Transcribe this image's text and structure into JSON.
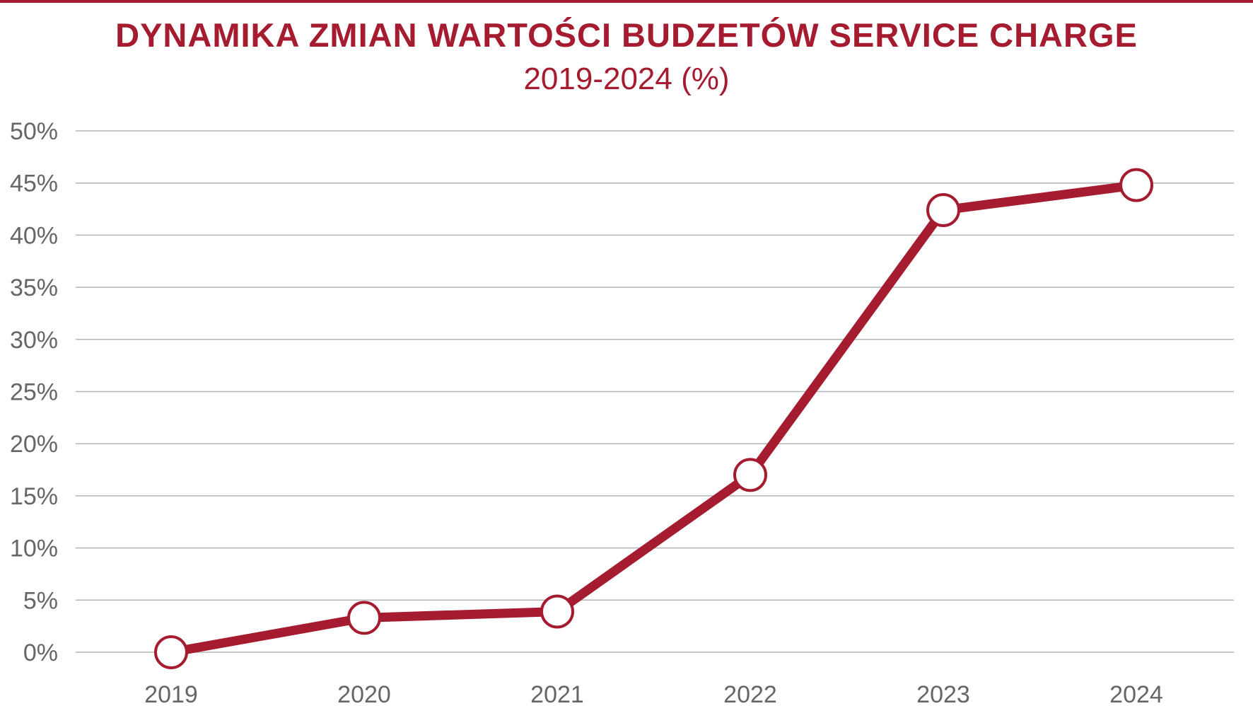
{
  "chart_data": {
    "type": "line",
    "title": "DYNAMIKA ZMIAN WARTOŚCI BUDZETÓW SERVICE CHARGE",
    "subtitle": "2019-2024 (%)",
    "categories": [
      "2019",
      "2020",
      "2021",
      "2022",
      "2023",
      "2024"
    ],
    "series": [
      {
        "values": [
          0,
          3.3,
          3.9,
          17.0,
          42.4,
          44.8
        ]
      }
    ],
    "ylim": [
      0,
      50
    ],
    "yticks": [
      0,
      5,
      10,
      15,
      20,
      25,
      30,
      35,
      40,
      45,
      50
    ],
    "ytick_labels": [
      "0%",
      "5%",
      "10%",
      "15%",
      "20%",
      "25%",
      "30%",
      "35%",
      "40%",
      "45%",
      "50%"
    ],
    "grid": true,
    "legend": "none",
    "colors": {
      "line": "#a51c30",
      "marker_fill": "#ffffff",
      "grid": "#b5b5b5",
      "axis_text": "#666666"
    }
  }
}
